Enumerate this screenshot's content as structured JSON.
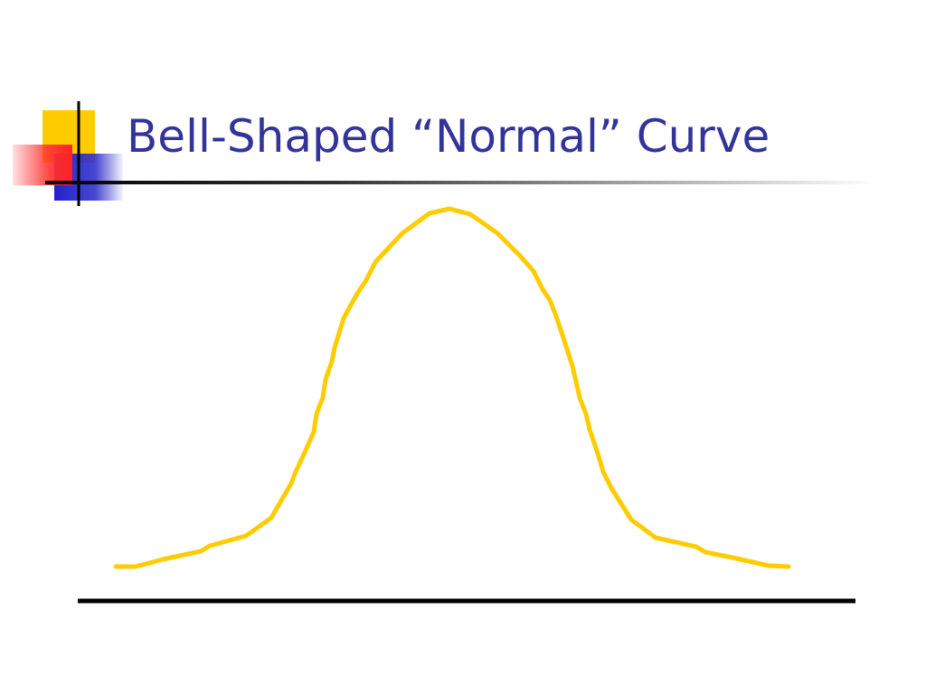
{
  "slide": {
    "title": "Bell-Shaped “Normal” Curve"
  }
}
